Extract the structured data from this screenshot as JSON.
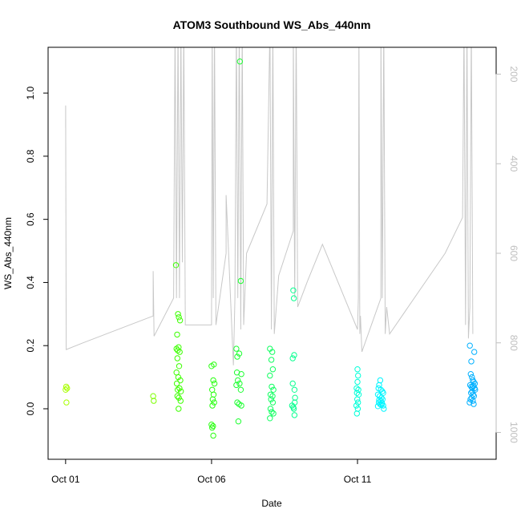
{
  "chart_data": {
    "type": "scatter",
    "title": "ATOM3 Southbound WS_Abs_440nm",
    "xlabel": "Date",
    "ylabel": "WS_Abs_440nm",
    "x_ticks": [
      "Oct 01",
      "Oct 06",
      "Oct 11"
    ],
    "x_tick_dates": [
      0,
      5,
      10
    ],
    "xlim_days": [
      -0.6,
      14.75
    ],
    "ylim": [
      -0.16,
      1.145
    ],
    "y_ticks": [
      "0.0",
      "0.2",
      "0.4",
      "0.6",
      "0.8",
      "1.0"
    ],
    "y_tick_values": [
      0.0,
      0.2,
      0.4,
      0.6,
      0.8,
      1.0
    ],
    "secondary_axis": {
      "position": "right",
      "ylim": [
        1060,
        140
      ],
      "ticks": [
        "200",
        "400",
        "600",
        "800",
        "1000"
      ],
      "tick_values": [
        200,
        400,
        600,
        800,
        1000
      ],
      "color": "#bebebe"
    },
    "grid": false,
    "series": [
      {
        "kind": "points",
        "marker": "open-circle",
        "note_color": "hue gradient green to blue by date",
        "points": [
          [
            0.0,
            0.06,
            "#a8ff00"
          ],
          [
            0.02,
            0.07,
            "#a8ff00"
          ],
          [
            0.05,
            0.065,
            "#a8ff00"
          ],
          [
            0.03,
            0.02,
            "#a8ff00"
          ],
          [
            3.0,
            0.04,
            "#7cff00"
          ],
          [
            3.02,
            0.025,
            "#7cff00"
          ],
          [
            3.78,
            0.455,
            "#3cff00"
          ],
          [
            3.85,
            0.3,
            "#3cff00"
          ],
          [
            3.88,
            0.29,
            "#3cff00"
          ],
          [
            3.92,
            0.28,
            "#3cff00"
          ],
          [
            3.82,
            0.235,
            "#3cff00"
          ],
          [
            3.8,
            0.19,
            "#3cff00"
          ],
          [
            3.84,
            0.185,
            "#3cff00"
          ],
          [
            3.87,
            0.195,
            "#3cff00"
          ],
          [
            3.91,
            0.18,
            "#3cff00"
          ],
          [
            3.83,
            0.16,
            "#3cff00"
          ],
          [
            3.89,
            0.135,
            "#3cff00"
          ],
          [
            3.8,
            0.115,
            "#3cff00"
          ],
          [
            3.86,
            0.1,
            "#3cff00"
          ],
          [
            3.93,
            0.09,
            "#3cff00"
          ],
          [
            3.81,
            0.08,
            "#3cff00"
          ],
          [
            3.9,
            0.065,
            "#3cff00"
          ],
          [
            3.84,
            0.06,
            "#3cff00"
          ],
          [
            3.95,
            0.055,
            "#3cff00"
          ],
          [
            3.83,
            0.04,
            "#3cff00"
          ],
          [
            3.88,
            0.035,
            "#3cff00"
          ],
          [
            3.94,
            0.025,
            "#3cff00"
          ],
          [
            3.87,
            0.0,
            "#3cff00"
          ],
          [
            5.0,
            0.135,
            "#28ff10"
          ],
          [
            5.08,
            0.14,
            "#28ff10"
          ],
          [
            5.06,
            0.09,
            "#28ff10"
          ],
          [
            5.1,
            0.08,
            "#28ff10"
          ],
          [
            5.02,
            0.06,
            "#28ff10"
          ],
          [
            5.07,
            0.045,
            "#28ff10"
          ],
          [
            5.04,
            0.03,
            "#28ff10"
          ],
          [
            5.09,
            0.02,
            "#28ff10"
          ],
          [
            5.03,
            0.01,
            "#28ff10"
          ],
          [
            5.0,
            -0.05,
            "#28ff10"
          ],
          [
            5.05,
            -0.055,
            "#28ff10"
          ],
          [
            5.02,
            -0.06,
            "#28ff10"
          ],
          [
            5.06,
            -0.085,
            "#28ff10"
          ],
          [
            5.85,
            0.19,
            "#1cff30"
          ],
          [
            5.95,
            0.175,
            "#1cff30"
          ],
          [
            5.88,
            0.165,
            "#1cff30"
          ],
          [
            5.87,
            0.115,
            "#1cff30"
          ],
          [
            6.02,
            0.11,
            "#1cff30"
          ],
          [
            5.9,
            0.09,
            "#1cff30"
          ],
          [
            5.96,
            0.08,
            "#1cff30"
          ],
          [
            5.85,
            0.075,
            "#1cff30"
          ],
          [
            6.0,
            0.06,
            "#1cff30"
          ],
          [
            5.88,
            0.02,
            "#1cff30"
          ],
          [
            5.94,
            0.015,
            "#1cff30"
          ],
          [
            6.02,
            0.01,
            "#1cff30"
          ],
          [
            5.92,
            -0.04,
            "#1cff30"
          ],
          [
            5.97,
            1.1,
            "#1cff30"
          ],
          [
            6.0,
            0.405,
            "#1cff30"
          ],
          [
            7.0,
            0.19,
            "#10ff60"
          ],
          [
            7.08,
            0.18,
            "#10ff60"
          ],
          [
            7.05,
            0.155,
            "#10ff60"
          ],
          [
            7.1,
            0.125,
            "#10ff60"
          ],
          [
            7.0,
            0.105,
            "#10ff60"
          ],
          [
            7.06,
            0.07,
            "#10ff60"
          ],
          [
            7.12,
            0.06,
            "#10ff60"
          ],
          [
            7.02,
            0.045,
            "#10ff60"
          ],
          [
            7.09,
            0.04,
            "#10ff60"
          ],
          [
            7.04,
            0.03,
            "#10ff60"
          ],
          [
            7.1,
            0.02,
            "#10ff60"
          ],
          [
            7.02,
            0.0,
            "#10ff60"
          ],
          [
            7.06,
            -0.01,
            "#10ff60"
          ],
          [
            7.12,
            -0.015,
            "#10ff60"
          ],
          [
            7.0,
            -0.03,
            "#10ff60"
          ],
          [
            7.8,
            0.375,
            "#08ff90"
          ],
          [
            7.82,
            0.35,
            "#08ff90"
          ],
          [
            7.78,
            0.16,
            "#08ff90"
          ],
          [
            7.83,
            0.17,
            "#08ff90"
          ],
          [
            7.78,
            0.08,
            "#08ff90"
          ],
          [
            7.84,
            0.06,
            "#08ff90"
          ],
          [
            7.86,
            0.035,
            "#08ff90"
          ],
          [
            7.85,
            0.02,
            "#08ff90"
          ],
          [
            7.76,
            0.01,
            "#08ff90"
          ],
          [
            7.82,
            0.0,
            "#08ff90"
          ],
          [
            7.8,
            0.005,
            "#08ff90"
          ],
          [
            7.84,
            -0.02,
            "#08ff90"
          ],
          [
            10.0,
            0.125,
            "#00ffd8"
          ],
          [
            10.02,
            0.105,
            "#00ffd8"
          ],
          [
            10.0,
            0.085,
            "#00ffd8"
          ],
          [
            9.97,
            0.065,
            "#00ffd8"
          ],
          [
            10.03,
            0.06,
            "#00ffd8"
          ],
          [
            9.98,
            0.05,
            "#00ffd8"
          ],
          [
            10.04,
            0.045,
            "#00ffd8"
          ],
          [
            9.99,
            0.03,
            "#00ffd8"
          ],
          [
            10.02,
            0.02,
            "#00ffd8"
          ],
          [
            9.96,
            0.01,
            "#00ffd8"
          ],
          [
            10.01,
            0.0,
            "#00ffd8"
          ],
          [
            9.98,
            -0.015,
            "#00ffd8"
          ],
          [
            10.78,
            0.09,
            "#00f5ff"
          ],
          [
            10.74,
            0.075,
            "#00f5ff"
          ],
          [
            10.72,
            0.065,
            "#00f5ff"
          ],
          [
            10.8,
            0.06,
            "#00f5ff"
          ],
          [
            10.85,
            0.055,
            "#00f5ff"
          ],
          [
            10.88,
            0.05,
            "#00f5ff"
          ],
          [
            10.7,
            0.045,
            "#00f5ff"
          ],
          [
            10.76,
            0.04,
            "#00f5ff"
          ],
          [
            10.82,
            0.035,
            "#00f5ff"
          ],
          [
            10.86,
            0.03,
            "#00f5ff"
          ],
          [
            10.74,
            0.028,
            "#00f5ff"
          ],
          [
            10.8,
            0.025,
            "#00f5ff"
          ],
          [
            10.73,
            0.02,
            "#00f5ff"
          ],
          [
            10.84,
            0.018,
            "#00f5ff"
          ],
          [
            10.77,
            0.015,
            "#00f5ff"
          ],
          [
            10.82,
            0.012,
            "#00f5ff"
          ],
          [
            10.88,
            0.01,
            "#00f5ff"
          ],
          [
            10.7,
            0.008,
            "#00f5ff"
          ],
          [
            10.9,
            0.0,
            "#00f5ff"
          ],
          [
            13.85,
            0.2,
            "#00b0ff"
          ],
          [
            14.0,
            0.18,
            "#00b0ff"
          ],
          [
            13.9,
            0.15,
            "#00b0ff"
          ],
          [
            13.88,
            0.11,
            "#00b0ff"
          ],
          [
            13.92,
            0.1,
            "#00b0ff"
          ],
          [
            13.95,
            0.09,
            "#00b0ff"
          ],
          [
            13.98,
            0.085,
            "#00b0ff"
          ],
          [
            14.02,
            0.08,
            "#00b0ff"
          ],
          [
            13.86,
            0.075,
            "#00b0ff"
          ],
          [
            13.9,
            0.07,
            "#00b0ff"
          ],
          [
            13.94,
            0.068,
            "#00b0ff"
          ],
          [
            13.97,
            0.072,
            "#00b0ff"
          ],
          [
            14.01,
            0.065,
            "#00b0ff"
          ],
          [
            14.03,
            0.06,
            "#00b0ff"
          ],
          [
            13.93,
            0.055,
            "#00b0ff"
          ],
          [
            13.89,
            0.05,
            "#00b0ff"
          ],
          [
            13.96,
            0.045,
            "#00b0ff"
          ],
          [
            13.99,
            0.04,
            "#00b0ff"
          ],
          [
            13.91,
            0.035,
            "#00b0ff"
          ],
          [
            13.87,
            0.03,
            "#00b0ff"
          ],
          [
            13.95,
            0.025,
            "#00b0ff"
          ],
          [
            13.84,
            0.02,
            "#00b0ff"
          ],
          [
            13.98,
            0.015,
            "#00b0ff"
          ]
        ]
      },
      {
        "kind": "line",
        "axis": "secondary",
        "color": "#c8c8c8",
        "points": [
          [
            0.0,
            320
          ],
          [
            0.0,
            270
          ],
          [
            0.02,
            815
          ],
          [
            0.6,
            800
          ],
          [
            3.0,
            740
          ],
          [
            3.0,
            640
          ],
          [
            3.03,
            785
          ],
          [
            3.7,
            700
          ],
          [
            3.75,
            90
          ],
          [
            3.8,
            700
          ],
          [
            3.85,
            90
          ],
          [
            3.9,
            700
          ],
          [
            3.95,
            90
          ],
          [
            4.0,
            620
          ],
          [
            4.05,
            90
          ],
          [
            4.1,
            760
          ],
          [
            5.0,
            760
          ],
          [
            5.02,
            90
          ],
          [
            5.06,
            700
          ],
          [
            5.1,
            90
          ],
          [
            5.15,
            760
          ],
          [
            5.5,
            600
          ],
          [
            5.5,
            470
          ],
          [
            5.75,
            850
          ],
          [
            5.8,
            700
          ],
          [
            5.85,
            90
          ],
          [
            5.9,
            700
          ],
          [
            5.95,
            90
          ],
          [
            6.0,
            770
          ],
          [
            6.05,
            90
          ],
          [
            6.1,
            760
          ],
          [
            6.2,
            600
          ],
          [
            6.9,
            490
          ],
          [
            7.0,
            90
          ],
          [
            7.05,
            770
          ],
          [
            7.1,
            90
          ],
          [
            7.15,
            780
          ],
          [
            7.3,
            650
          ],
          [
            7.8,
            550
          ],
          [
            7.8,
            90
          ],
          [
            7.85,
            700
          ],
          [
            7.9,
            90
          ],
          [
            7.95,
            720
          ],
          [
            8.3,
            660
          ],
          [
            8.8,
            580
          ],
          [
            10.0,
            770
          ],
          [
            10.03,
            700
          ],
          [
            10.05,
            90
          ],
          [
            10.08,
            780
          ],
          [
            10.1,
            740
          ],
          [
            10.15,
            820
          ],
          [
            10.8,
            700
          ],
          [
            10.8,
            90
          ],
          [
            10.85,
            700
          ],
          [
            10.9,
            90
          ],
          [
            10.95,
            780
          ],
          [
            11.0,
            720
          ],
          [
            11.1,
            780
          ],
          [
            13.0,
            600
          ],
          [
            13.6,
            520
          ],
          [
            13.65,
            90
          ],
          [
            13.7,
            760
          ],
          [
            13.75,
            90
          ],
          [
            13.8,
            790
          ],
          [
            13.85,
            720
          ],
          [
            13.9,
            90
          ],
          [
            13.95,
            780
          ]
        ]
      }
    ]
  }
}
